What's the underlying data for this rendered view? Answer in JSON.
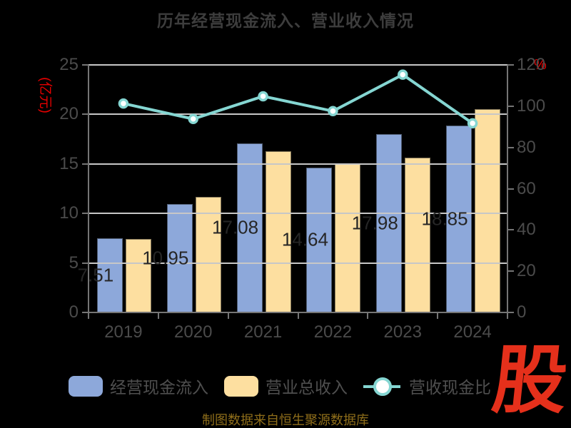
{
  "chart_data": {
    "type": "combo-bar-line",
    "title": "历年经营现金流入、营业收入情况",
    "categories": [
      "2019",
      "2020",
      "2021",
      "2022",
      "2023",
      "2024"
    ],
    "series": [
      {
        "name": "经营现金流入",
        "type": "bar",
        "axis": "left",
        "color": "#8da8da",
        "values": [
          7.51,
          10.95,
          17.08,
          14.64,
          17.98,
          18.85
        ],
        "data_labels": [
          "7.51",
          "10.95",
          "17.08",
          "14.64",
          "17.98",
          "18.85"
        ]
      },
      {
        "name": "营业总收入",
        "type": "bar",
        "axis": "left",
        "color": "#fddfa0",
        "values": [
          7.41,
          11.67,
          16.3,
          15.0,
          15.6,
          20.55
        ],
        "data_labels": []
      },
      {
        "name": "营收现金比",
        "type": "line",
        "axis": "right",
        "color": "#85d6d2",
        "marker": "circle-white-fill",
        "values": [
          101.3,
          93.8,
          104.8,
          97.6,
          115.3,
          91.7
        ]
      }
    ],
    "left_axis": {
      "label": "(亿元)",
      "min": 0,
      "max": 25,
      "ticks": [
        0,
        5,
        10,
        15,
        20,
        25
      ]
    },
    "right_axis": {
      "label": "%",
      "min": 0,
      "max": 120,
      "ticks": [
        0,
        20,
        40,
        60,
        80,
        100,
        120
      ]
    },
    "grid": "horizontal",
    "legend_position": "bottom"
  },
  "footer": {
    "source_note": "制图数据来自恒生聚源数据库"
  },
  "logo": {
    "char": "股",
    "color": "#e5301b"
  },
  "colors": {
    "background": "#000000",
    "title": "#3d3d3d",
    "axis_label": "#4b4b4b",
    "axis_line": "#757575",
    "gridline": "#c7c7c7",
    "unit_label": "#e60000",
    "bar_value_label": "#262626"
  }
}
